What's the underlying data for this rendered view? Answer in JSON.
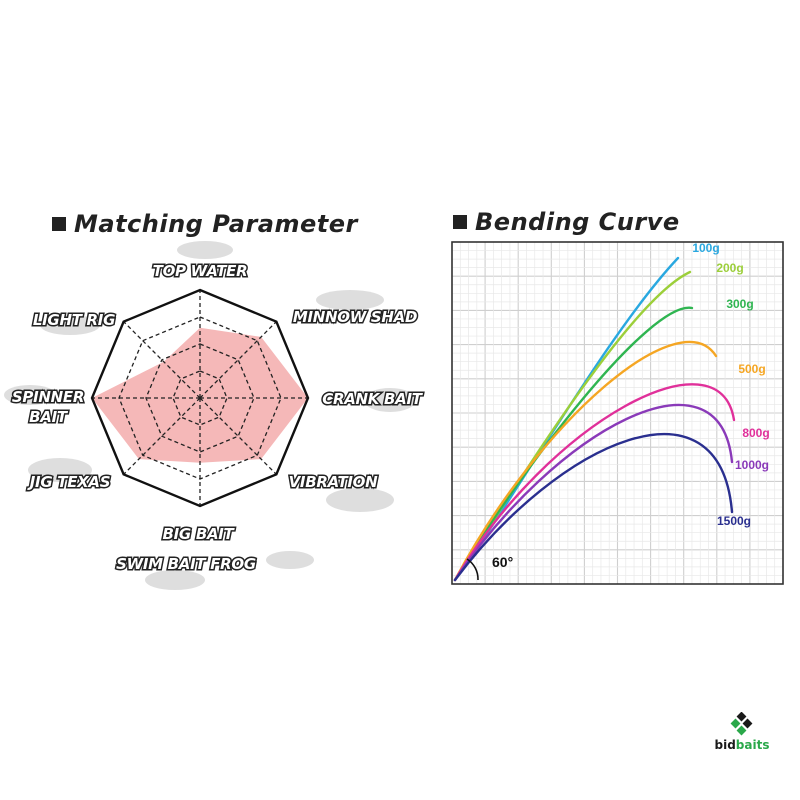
{
  "brand": {
    "text_a": "bid",
    "text_b": "baits",
    "colors": {
      "dark": "#1a1a1a",
      "green": "#2aa84a"
    }
  },
  "chart_data": [
    {
      "type": "radar",
      "title": "Matching Parameter",
      "axes": [
        "TOP WATER",
        "MINNOW SHAD",
        "CRANK BAIT",
        "VIBRATION",
        "BIG BAIT",
        "JIG TEXAS",
        "SPINNER BAIT",
        "LIGHT RIG"
      ],
      "axis_label_lines": [
        [
          "TOP WATER"
        ],
        [
          "MINNOW SHAD"
        ],
        [
          "CRANK BAIT"
        ],
        [
          "VIBRATION"
        ],
        [
          "BIG BAIT",
          "SWIM BAIT FROG"
        ],
        [
          "JIG TEXAS"
        ],
        [
          "SPINNER",
          "BAIT"
        ],
        [
          "LIGHT RIG"
        ]
      ],
      "levels": 4,
      "max": 4,
      "values": [
        2.6,
        3.2,
        4,
        3.2,
        2.4,
        3.2,
        4,
        1.9
      ],
      "fill_color": "#f5b8b8"
    },
    {
      "type": "line",
      "title": "Bending Curve",
      "annotation": "60°",
      "grid": true,
      "series": [
        {
          "name": "100g",
          "color": "#29a8e0"
        },
        {
          "name": "200g",
          "color": "#9ccf3a"
        },
        {
          "name": "300g",
          "color": "#2fb551"
        },
        {
          "name": "500g",
          "color": "#f5a623"
        },
        {
          "name": "800g",
          "color": "#e0309a"
        },
        {
          "name": "1000g",
          "color": "#8a3ab9"
        },
        {
          "name": "1500g",
          "color": "#2a2f8f"
        }
      ]
    }
  ]
}
